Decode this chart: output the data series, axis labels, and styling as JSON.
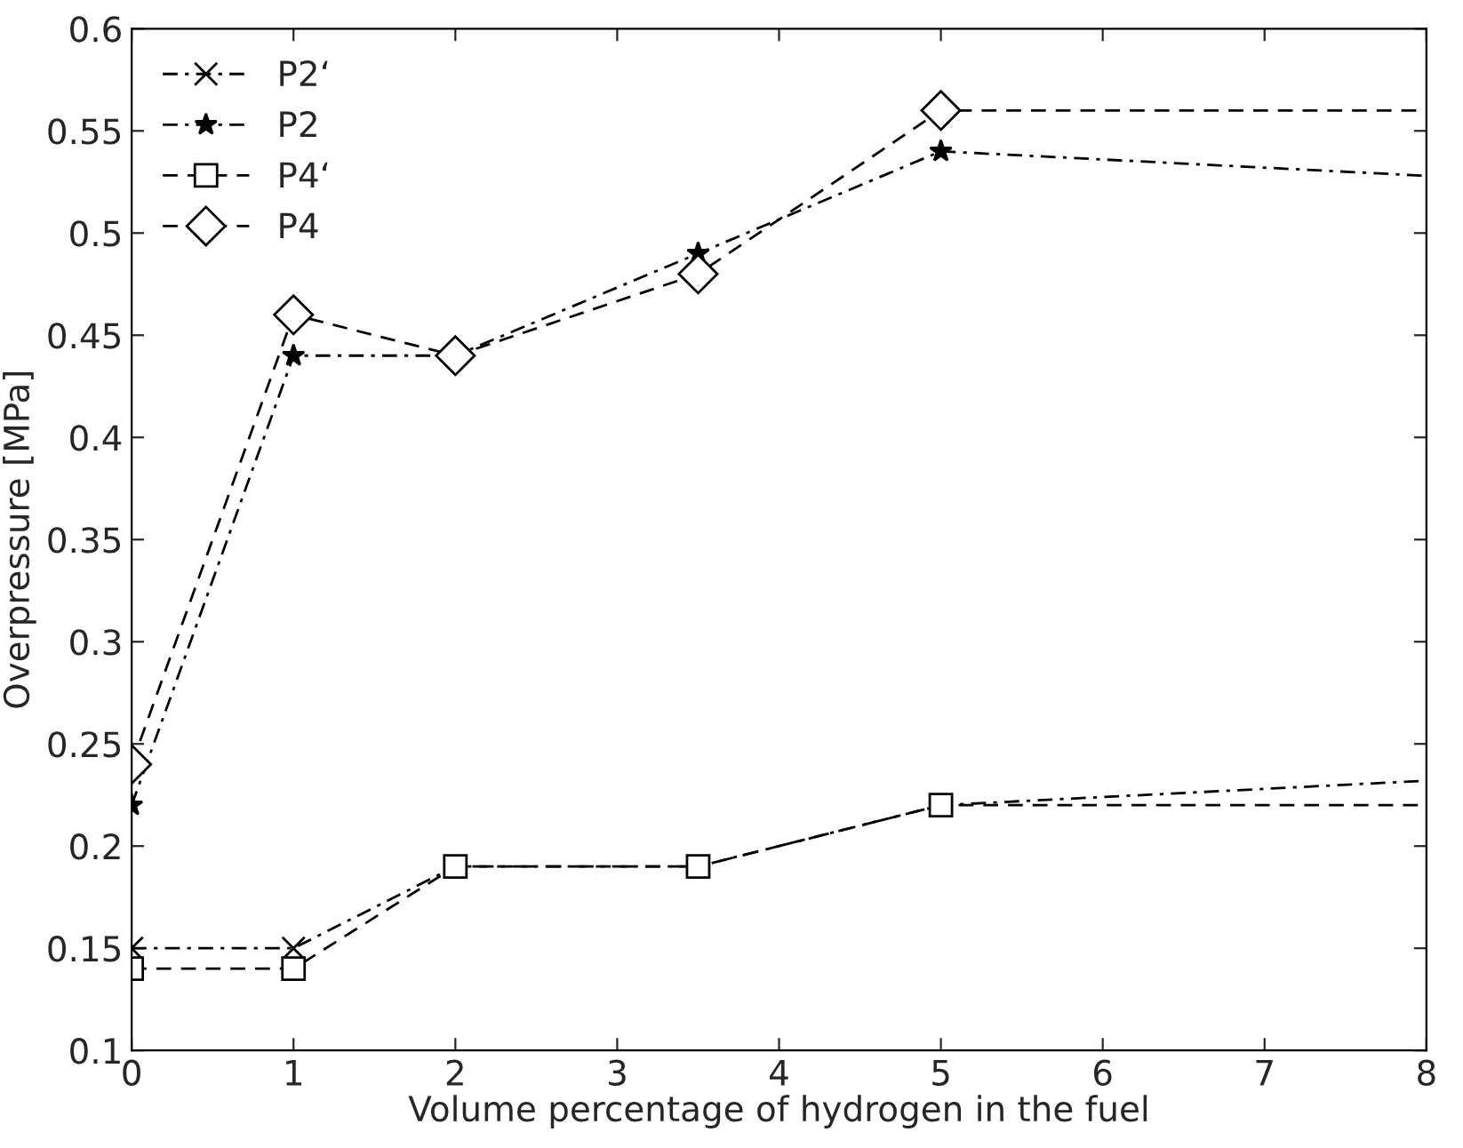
{
  "chart_data": {
    "type": "line",
    "xlabel": "Volume percentage of hydrogen in the fuel",
    "ylabel": "Overpressure [MPa]",
    "xlim": [
      0,
      8
    ],
    "xticks": [
      0,
      1,
      2,
      3,
      4,
      5,
      6,
      7,
      8
    ],
    "ylim": [
      0.1,
      0.6
    ],
    "yticks": [
      0.1,
      0.15,
      0.2,
      0.25,
      0.3,
      0.35,
      0.4,
      0.45,
      0.5,
      0.55,
      0.6
    ],
    "grid": false,
    "legend": "top left",
    "series": [
      {
        "name": "P2‘",
        "color": "#000000",
        "marker": "cross",
        "line_style": "dashdot",
        "x": [
          0,
          1,
          2,
          3.5,
          5,
          8
        ],
        "values": [
          0.15,
          0.15,
          0.19,
          0.19,
          0.22,
          0.232
        ]
      },
      {
        "name": "P2",
        "color": "#000000",
        "marker": "star",
        "line_style": "dashdot",
        "x": [
          0,
          1,
          2,
          3.5,
          5,
          8
        ],
        "values": [
          0.22,
          0.44,
          0.44,
          0.49,
          0.54,
          0.528
        ]
      },
      {
        "name": "P4‘",
        "color": "#000000",
        "marker": "square",
        "line_style": "dashed",
        "x": [
          0,
          1,
          2,
          3.5,
          5,
          8
        ],
        "values": [
          0.14,
          0.14,
          0.19,
          0.19,
          0.22,
          0.22
        ]
      },
      {
        "name": "P4",
        "color": "#000000",
        "marker": "diamond",
        "line_style": "dashed",
        "x": [
          0,
          1,
          2,
          3.5,
          5,
          8
        ],
        "values": [
          0.24,
          0.46,
          0.44,
          0.48,
          0.56,
          0.56
        ]
      }
    ]
  }
}
